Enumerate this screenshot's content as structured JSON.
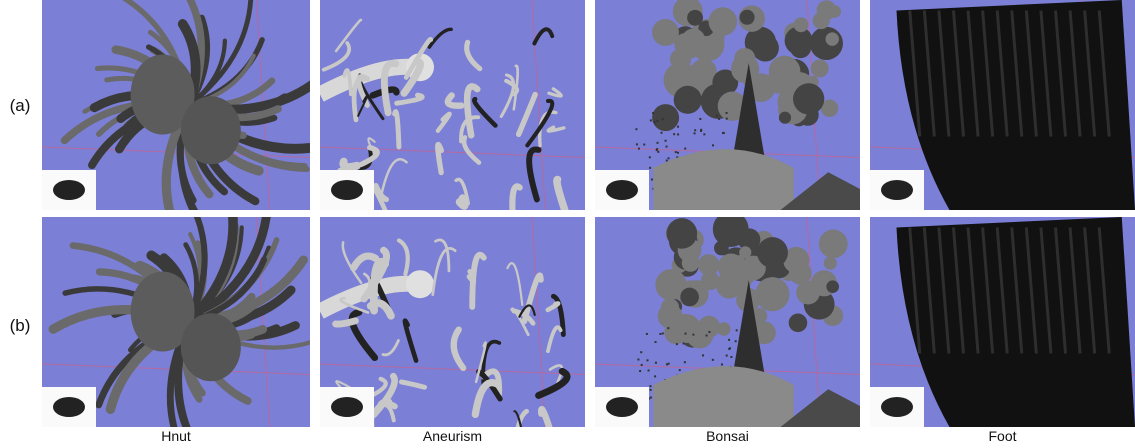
{
  "row_labels": [
    "(a)",
    "(b)"
  ],
  "column_labels": [
    "Hnut",
    "Aneurism",
    "Bonsai",
    "Foot"
  ]
}
